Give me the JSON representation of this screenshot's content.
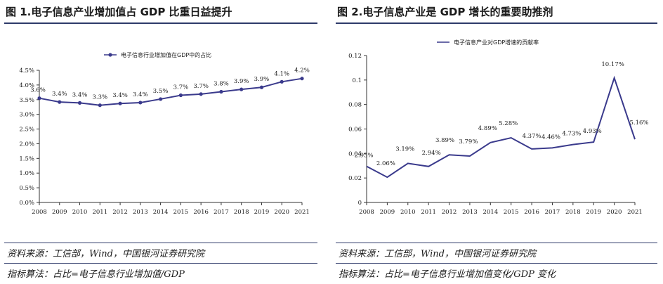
{
  "colors": {
    "line": "#3a3a8c",
    "rule": "#2e3a6a",
    "axis": "#333333"
  },
  "left": {
    "title": "图 1.电子信息产业增加值占 GDP 比重日益提升",
    "source": "资料来源：工信部，Wind，中国银河证券研究院",
    "method": "指标算法：占比=电子信息行业增加值/GDP"
  },
  "right": {
    "title": "图 2.电子信息产业是 GDP 增长的重要助推剂",
    "source": "资料来源：工信部，Wind，中国银河证券研究院",
    "method": "指标算法：占比=电子信息行业增加值变化/GDP 变化"
  },
  "chart_data": [
    {
      "type": "line",
      "title": "",
      "xlabel": "",
      "ylabel": "",
      "categories": [
        "2008",
        "2009",
        "2010",
        "2011",
        "2012",
        "2013",
        "2014",
        "2015",
        "2016",
        "2017",
        "2018",
        "2019",
        "2020",
        "2021"
      ],
      "series": [
        {
          "name": "电子信息行业增加值在GDP中的占比",
          "values": [
            3.55,
            3.42,
            3.39,
            3.31,
            3.37,
            3.4,
            3.52,
            3.65,
            3.69,
            3.77,
            3.85,
            3.92,
            4.11,
            4.22
          ],
          "labels": [
            "3.6%",
            "3.4%",
            "3.4%",
            "3.3%",
            "3.4%",
            "3.4%",
            "3.5%",
            "3.7%",
            "3.7%",
            "3.8%",
            "3.9%",
            "3.9%",
            "4.1%",
            "4.2%"
          ],
          "markers": true
        }
      ],
      "ylim": [
        0,
        4.5
      ],
      "yticks": [
        "0.0%",
        "0.5%",
        "1.0%",
        "1.5%",
        "2.0%",
        "2.5%",
        "3.0%",
        "3.5%",
        "4.0%",
        "4.5%"
      ],
      "legend": "top",
      "grid": false
    },
    {
      "type": "line",
      "title": "",
      "xlabel": "",
      "ylabel": "",
      "categories": [
        "2008",
        "2009",
        "2010",
        "2011",
        "2012",
        "2013",
        "2014",
        "2015",
        "2016",
        "2017",
        "2018",
        "2019",
        "2020",
        "2021"
      ],
      "series": [
        {
          "name": "电子信息产业对GDP增速的贡献率",
          "values": [
            0.0295,
            0.0206,
            0.0319,
            0.0294,
            0.0389,
            0.0379,
            0.0489,
            0.0528,
            0.0437,
            0.0446,
            0.0473,
            0.0493,
            0.1017,
            0.0516
          ],
          "labels": [
            "2.95%",
            "2.06%",
            "3.19%",
            "2.94%",
            "3.89%",
            "3.79%",
            "4.89%",
            "5.28%",
            "4.37%",
            "4.46%",
            "4.73%",
            "4.93%",
            "10.17%",
            "5.16%"
          ],
          "markers": false
        }
      ],
      "ylim": [
        0,
        0.12
      ],
      "yticks": [
        "0",
        "0.02",
        "0.04",
        "0.06",
        "0.08",
        "0.1",
        "0.12"
      ],
      "legend": "top",
      "grid": false
    }
  ]
}
